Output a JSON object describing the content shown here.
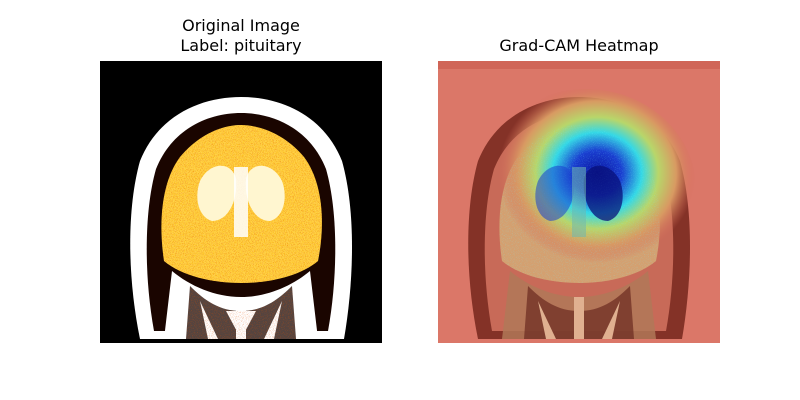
{
  "figure": {
    "left_panel": {
      "title_line1": "Original Image",
      "title_line2": "Label: pituitary"
    },
    "right_panel": {
      "title": "Grad-CAM Heatmap"
    }
  },
  "colors": {
    "background": "#ffffff",
    "mri_background": "#000000",
    "hot_white": "#ffffff",
    "hot_yellow": "#ffe15a",
    "hot_orange": "#ff7a00",
    "hot_red": "#b01000",
    "heatmap_red": "#d9685a",
    "heatmap_yellow": "#d8d06a",
    "heatmap_cyan": "#38e0e8",
    "heatmap_blue": "#1420b0"
  }
}
